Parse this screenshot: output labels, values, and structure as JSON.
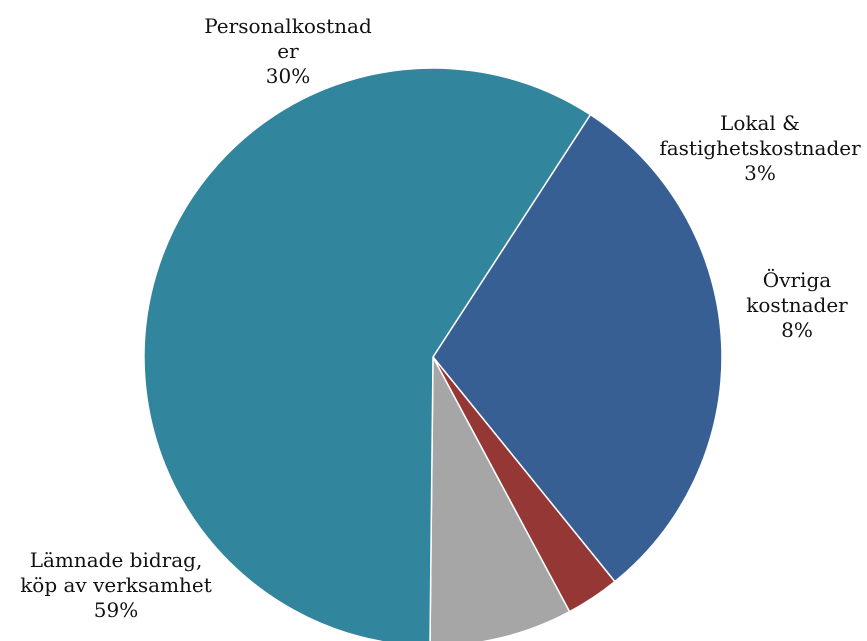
{
  "chart_data": {
    "type": "pie",
    "title": "",
    "slices": [
      {
        "label_lines": [
          "Personalkostnad",
          "er"
        ],
        "percent_label": "30%",
        "value": 30,
        "color": "#375f93"
      },
      {
        "label_lines": [
          "Lokal &",
          "fastighetskostnader"
        ],
        "percent_label": "3%",
        "value": 3,
        "color": "#953735"
      },
      {
        "label_lines": [
          "Övriga",
          "kostnader"
        ],
        "percent_label": "8%",
        "value": 8,
        "color": "#a6a6a6"
      },
      {
        "label_lines": [
          "Lämnade bidrag,",
          "köp av verksamhet"
        ],
        "percent_label": "59%",
        "value": 59,
        "color": "#31859c"
      }
    ]
  }
}
